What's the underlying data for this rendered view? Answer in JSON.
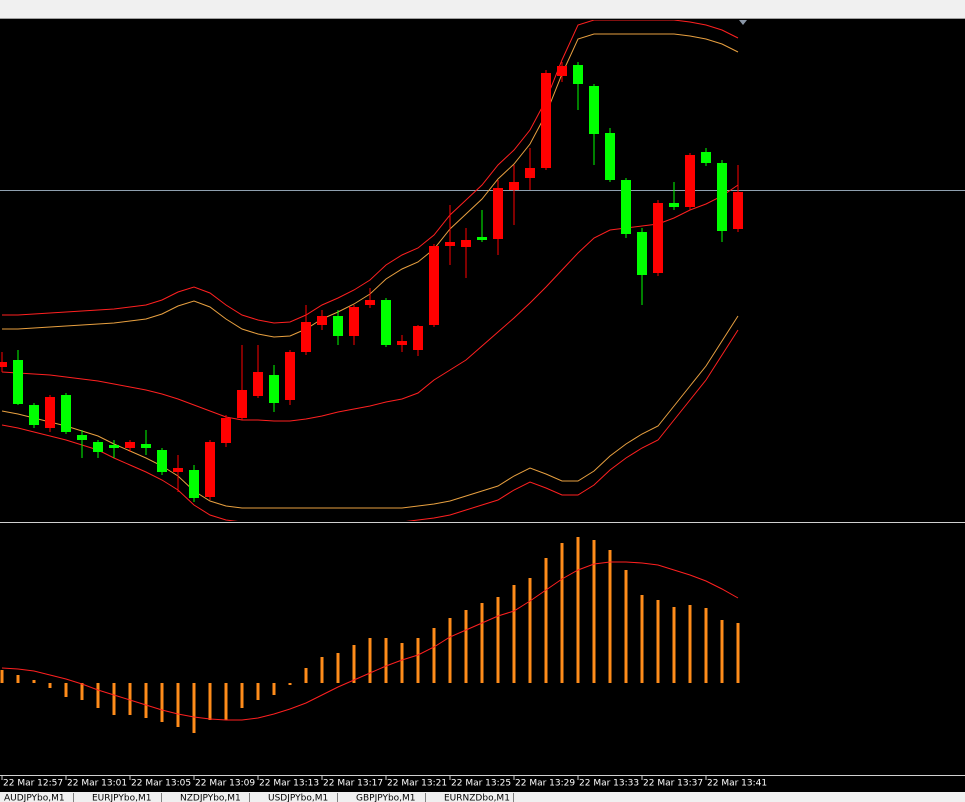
{
  "chart_data": [
    {
      "type": "candlestick",
      "categories": [
        "22 Mar 12:57",
        null,
        null,
        null,
        "22 Mar 13:01",
        null,
        null,
        null,
        "22 Mar 13:05",
        null,
        null,
        null,
        "22 Mar 13:09",
        null,
        null,
        null,
        "22 Mar 13:13",
        null,
        null,
        null,
        "22 Mar 13:17",
        null,
        null,
        null,
        "22 Mar 13:21",
        null,
        null,
        null,
        "22 Mar 13:25",
        null,
        null,
        null,
        "22 Mar 13:29",
        null,
        null,
        null,
        "22 Mar 13:33",
        null,
        null,
        null,
        "22 Mar 13:37",
        null,
        null,
        null,
        "22 Mar 13:41",
        null,
        null
      ],
      "open": [
        153,
        160,
        115,
        92,
        125,
        85,
        78,
        75,
        72,
        76,
        70,
        48,
        50,
        23,
        77,
        102,
        124,
        145,
        120,
        168,
        195,
        204,
        184,
        215,
        220,
        175,
        170,
        195,
        274,
        273,
        283,
        281,
        330,
        342,
        352,
        444,
        455,
        434,
        387,
        340,
        288,
        247,
        317,
        313,
        368,
        357,
        291
      ],
      "high": [
        168,
        170,
        117,
        125,
        127,
        90,
        80,
        80,
        80,
        90,
        72,
        65,
        55,
        80,
        105,
        175,
        175,
        155,
        170,
        215,
        210,
        210,
        215,
        232,
        222,
        185,
        195,
        276,
        315,
        292,
        310,
        340,
        355,
        372,
        450,
        458,
        458,
        436,
        392,
        342,
        292,
        320,
        338,
        367,
        372,
        360,
        355
      ],
      "low": [
        148,
        115,
        92,
        88,
        86,
        62,
        62,
        62,
        68,
        65,
        45,
        28,
        18,
        20,
        73,
        100,
        122,
        108,
        115,
        165,
        190,
        175,
        175,
        212,
        173,
        168,
        164,
        193,
        255,
        242,
        278,
        265,
        295,
        330,
        350,
        438,
        410,
        355,
        338,
        282,
        215,
        244,
        310,
        310,
        354,
        278,
        288
      ],
      "close": [
        158,
        116,
        95,
        123,
        88,
        80,
        68,
        72,
        78,
        72,
        48,
        52,
        22,
        78,
        102,
        130,
        148,
        117,
        168,
        198,
        204,
        184,
        213,
        220,
        175,
        179,
        194,
        274,
        278,
        280,
        280,
        332,
        338,
        352,
        447,
        454,
        436,
        386,
        340,
        286,
        245,
        317,
        313,
        365,
        357,
        289,
        328
      ],
      "up_color": "#ff0000",
      "down_color": "#00ff00",
      "ylim": [
        0,
        500
      ],
      "hline": 330,
      "hline_color": "#8fa0b0",
      "series": [
        {
          "color": "#ff2020",
          "values": [
            148,
            147,
            146,
            145,
            143,
            141,
            139,
            136,
            133,
            130,
            126,
            121,
            115,
            109,
            103,
            100,
            100,
            99,
            99,
            101,
            104,
            108,
            111,
            114,
            118,
            121,
            127,
            140,
            150,
            160,
            174,
            188,
            202,
            217,
            233,
            250,
            267,
            282,
            290,
            292,
            294,
            296,
            302,
            310,
            316,
            324,
            335
          ]
        },
        {
          "color": "#ff2020",
          "values": [
            205,
            205,
            206,
            207,
            208,
            209,
            210,
            211,
            213,
            215,
            220,
            228,
            233,
            227,
            215,
            205,
            200,
            197,
            198,
            205,
            215,
            222,
            230,
            240,
            255,
            265,
            272,
            285,
            305,
            320,
            335,
            355,
            370,
            390,
            420,
            460,
            495,
            500,
            500,
            500,
            500,
            500,
            500,
            498,
            495,
            490,
            482
          ]
        },
        {
          "color": "#e8a040",
          "values": [
            191,
            191,
            192,
            193,
            194,
            195,
            196,
            197,
            199,
            201,
            206,
            214,
            219,
            213,
            201,
            191,
            186,
            183,
            184,
            191,
            201,
            208,
            216,
            226,
            241,
            251,
            258,
            271,
            291,
            306,
            321,
            341,
            356,
            376,
            406,
            446,
            481,
            486,
            486,
            486,
            486,
            486,
            486,
            484,
            481,
            476,
            468
          ]
        },
        {
          "color": "#e8a040",
          "values": [
            109,
            106,
            102,
            98,
            94,
            89,
            84,
            76,
            69,
            62,
            54,
            44,
            29,
            19,
            14,
            12,
            12,
            12,
            12,
            12,
            12,
            12,
            12,
            12,
            12,
            12,
            14,
            16,
            19,
            24,
            29,
            34,
            44,
            52,
            46,
            39,
            39,
            49,
            64,
            76,
            86,
            94,
            114,
            134,
            154,
            179,
            204
          ]
        },
        {
          "color": "#ff2020",
          "values": [
            95,
            92,
            88,
            84,
            80,
            75,
            70,
            62,
            55,
            48,
            40,
            30,
            15,
            5,
            0,
            -2,
            -2,
            -2,
            -2,
            -2,
            -2,
            -2,
            -2,
            -2,
            -2,
            -2,
            0,
            2,
            5,
            10,
            15,
            20,
            30,
            38,
            32,
            25,
            25,
            35,
            50,
            62,
            72,
            80,
            100,
            120,
            140,
            165,
            190
          ]
        }
      ]
    },
    {
      "type": "macd",
      "color": "#ff8c1a",
      "values": [
        13,
        8,
        3,
        -5,
        -14,
        -17,
        -25,
        -32,
        -32,
        -35,
        -39,
        -44,
        -50,
        -37,
        -37,
        -25,
        -17,
        -12,
        -2,
        15,
        26,
        30,
        38,
        45,
        45,
        40,
        45,
        55,
        65,
        73,
        80,
        86,
        98,
        105,
        125,
        140,
        146,
        143,
        133,
        113,
        88,
        83,
        76,
        78,
        75,
        63,
        60
      ],
      "signal": {
        "color": "#ff2020",
        "values": [
          15,
          14,
          12,
          8,
          4,
          -1,
          -7,
          -12,
          -17,
          -22,
          -27,
          -31,
          -34,
          -36,
          -37,
          -37,
          -35,
          -31,
          -26,
          -20,
          -12,
          -4,
          3,
          10,
          17,
          23,
          28,
          36,
          46,
          53,
          60,
          67,
          72,
          82,
          93,
          104,
          113,
          119,
          121,
          121,
          120,
          118,
          113,
          108,
          102,
          94,
          85
        ]
      },
      "ylim": [
        -92,
        158
      ]
    }
  ],
  "tabs": [
    "AUDJPYbo,M1",
    "EURJPYbo,M1",
    "NZDJPYbo,M1",
    "USDJPYbo,M1",
    "GBPJPYbo,M1",
    "EURNZDbo,M1"
  ]
}
